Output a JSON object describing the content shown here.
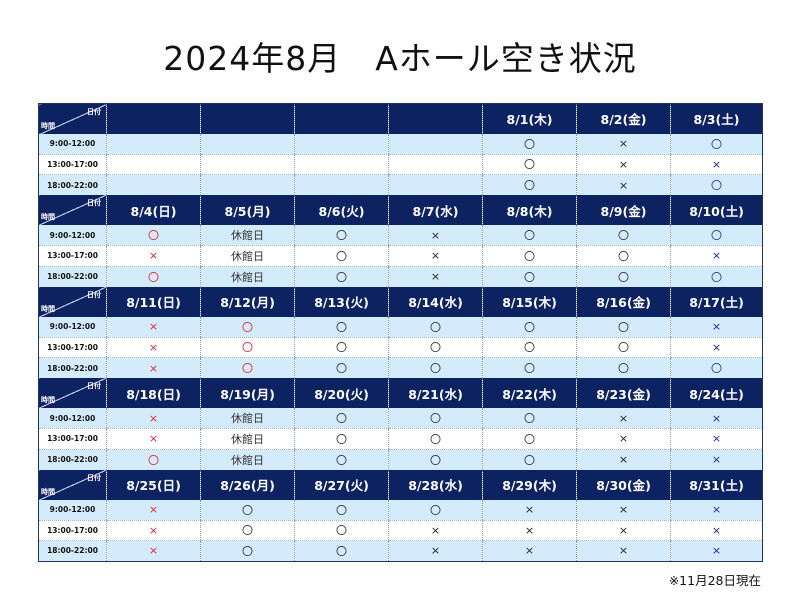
{
  "title": "2024年8月　Aホール空き状況",
  "corner": {
    "date_label": "日付",
    "time_label": "時間"
  },
  "time_slots": [
    "9:00-12:00",
    "13:00-17:00",
    "18:00-22:00"
  ],
  "marks": {
    "circle": "〇",
    "cross": "×",
    "closed": "休館日",
    "empty": ""
  },
  "colors": {
    "header_bg": "#0d2260",
    "row_shade": "#d3ebfa",
    "red": "#e0263a",
    "blue": "#1c2a8a"
  },
  "weeks": [
    {
      "dates": [
        "",
        "",
        "",
        "",
        "8/1(木)",
        "8/2(金)",
        "8/3(土)"
      ],
      "rows": [
        [
          "empty",
          "empty",
          "empty",
          "empty",
          "circle",
          "cross",
          "circle-blue"
        ],
        [
          "empty",
          "empty",
          "empty",
          "empty",
          "circle",
          "cross",
          "cross-blue"
        ],
        [
          "empty",
          "empty",
          "empty",
          "empty",
          "circle",
          "cross",
          "circle-blue"
        ]
      ]
    },
    {
      "dates": [
        "8/4(日)",
        "8/5(月)",
        "8/6(火)",
        "8/7(水)",
        "8/8(木)",
        "8/9(金)",
        "8/10(土)"
      ],
      "rows": [
        [
          "circle-red",
          "closed",
          "circle",
          "cross",
          "circle",
          "circle",
          "circle-blue"
        ],
        [
          "cross-red",
          "closed",
          "circle",
          "cross",
          "circle",
          "circle",
          "cross-blue"
        ],
        [
          "circle-red",
          "closed",
          "circle",
          "cross",
          "circle",
          "circle",
          "circle-blue"
        ]
      ]
    },
    {
      "dates": [
        "8/11(日)",
        "8/12(月)",
        "8/13(火)",
        "8/14(水)",
        "8/15(木)",
        "8/16(金)",
        "8/17(土)"
      ],
      "rows": [
        [
          "cross-red",
          "circle-red",
          "circle",
          "circle",
          "circle",
          "circle",
          "cross-blue"
        ],
        [
          "cross-red",
          "circle-red",
          "circle",
          "circle",
          "circle",
          "circle",
          "cross-blue"
        ],
        [
          "cross-red",
          "circle-red",
          "circle",
          "circle",
          "circle",
          "circle",
          "circle-blue"
        ]
      ]
    },
    {
      "dates": [
        "8/18(日)",
        "8/19(月)",
        "8/20(火)",
        "8/21(水)",
        "8/22(木)",
        "8/23(金)",
        "8/24(土)"
      ],
      "rows": [
        [
          "cross-red",
          "closed",
          "circle",
          "circle",
          "circle",
          "cross",
          "cross-blue"
        ],
        [
          "cross-red",
          "closed",
          "circle",
          "circle",
          "circle",
          "cross",
          "cross-blue"
        ],
        [
          "circle-red",
          "closed",
          "circle",
          "circle",
          "circle",
          "cross",
          "cross-blue"
        ]
      ]
    },
    {
      "dates": [
        "8/25(日)",
        "8/26(月)",
        "8/27(火)",
        "8/28(水)",
        "8/29(木)",
        "8/30(金)",
        "8/31(土)"
      ],
      "rows": [
        [
          "cross-red",
          "circle",
          "circle",
          "circle",
          "cross",
          "cross",
          "cross-blue"
        ],
        [
          "cross-red",
          "circle",
          "circle",
          "cross",
          "cross",
          "cross",
          "cross-blue"
        ],
        [
          "cross-red",
          "circle",
          "circle",
          "cross",
          "cross",
          "cross",
          "cross-blue"
        ]
      ]
    }
  ],
  "note": "※11月28日現在"
}
